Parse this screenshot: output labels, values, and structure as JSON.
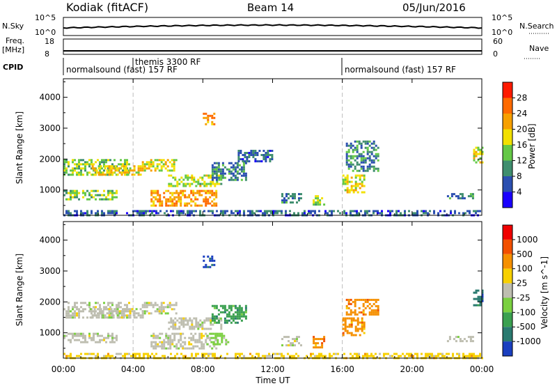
{
  "header": {
    "station": "Kodiak (fitACF)",
    "beam": "Beam 14",
    "date": "05/Jun/2016"
  },
  "top_panels": {
    "nsky_label": "N.Sky",
    "nsky_ticks": [
      "10^5",
      "10^0"
    ],
    "nsearch_label": "N.Search",
    "nsearch_ticks": [
      "10^5",
      "10^0"
    ],
    "freq_label": [
      "Freq.",
      "[MHz]"
    ],
    "freq_ticks": [
      "18",
      "8"
    ],
    "nave_label": "Nave",
    "nave_ticks": [
      "60",
      "0"
    ],
    "cpid_label": "CPID",
    "cpid_segments": [
      {
        "name": "normalsound (fast) 157 RF",
        "start_h": 0,
        "end_h": 16
      },
      {
        "name": "themis 3300 RF",
        "start_h": 4,
        "end_h": 4
      },
      {
        "name": "normalsound (fast) 157 RF",
        "start_h": 16,
        "end_h": 24
      }
    ]
  },
  "chart_data": [
    {
      "type": "heatmap",
      "quantity": "Power",
      "ylabel": "Slant Range [km]",
      "yticks": [
        1000,
        2000,
        3000,
        4000
      ],
      "ylim": [
        180,
        4600
      ],
      "xlim": [
        0,
        24
      ],
      "colorbar": {
        "label": "Power [dB]",
        "ticks": [
          4,
          8,
          12,
          16,
          20,
          24,
          28
        ],
        "range": [
          0,
          32
        ],
        "colors": [
          "#1a00ff",
          "#2b4fb0",
          "#3f8e6e",
          "#64c846",
          "#f2e000",
          "#f7a000",
          "#ff6a00",
          "#ff1a00"
        ]
      },
      "echo_regions": [
        {
          "t0": 0.0,
          "t1": 24.0,
          "r0": 180,
          "r1": 350,
          "level": 6
        },
        {
          "t0": 0.0,
          "t1": 3.8,
          "r0": 1500,
          "r1": 2000,
          "level": 14
        },
        {
          "t0": 1.5,
          "t1": 4.6,
          "r0": 1500,
          "r1": 1800,
          "level": 20
        },
        {
          "t0": 4.5,
          "t1": 6.5,
          "r0": 1650,
          "r1": 2000,
          "level": 18
        },
        {
          "t0": 0.0,
          "t1": 3.0,
          "r0": 700,
          "r1": 1000,
          "level": 14
        },
        {
          "t0": 5.0,
          "t1": 8.8,
          "r0": 500,
          "r1": 1000,
          "level": 24
        },
        {
          "t0": 6.0,
          "t1": 9.0,
          "r0": 1100,
          "r1": 1500,
          "level": 16
        },
        {
          "t0": 8.5,
          "t1": 10.5,
          "r0": 1300,
          "r1": 1900,
          "level": 8
        },
        {
          "t0": 10.0,
          "t1": 12.0,
          "r0": 1900,
          "r1": 2300,
          "level": 6
        },
        {
          "t0": 12.5,
          "t1": 13.6,
          "r0": 600,
          "r1": 900,
          "level": 8
        },
        {
          "t0": 14.3,
          "t1": 14.9,
          "r0": 500,
          "r1": 900,
          "level": 14
        },
        {
          "t0": 16.0,
          "t1": 17.2,
          "r0": 900,
          "r1": 1500,
          "level": 18
        },
        {
          "t0": 16.2,
          "t1": 18.0,
          "r0": 1600,
          "r1": 2600,
          "level": 8
        },
        {
          "t0": 22.0,
          "t1": 23.5,
          "r0": 750,
          "r1": 900,
          "level": 8
        },
        {
          "t0": 23.5,
          "t1": 24.0,
          "r0": 1900,
          "r1": 2400,
          "level": 18
        },
        {
          "t0": 8.0,
          "t1": 8.6,
          "r0": 3100,
          "r1": 3500,
          "level": 24
        }
      ]
    },
    {
      "type": "heatmap",
      "quantity": "Velocity",
      "ylabel": "Slant Range [km]",
      "yticks": [
        1000,
        2000,
        3000,
        4000
      ],
      "ylim": [
        180,
        4600
      ],
      "xlim": [
        0,
        24
      ],
      "xticks": [
        "00:00",
        "04:00",
        "08:00",
        "12:00",
        "16:00",
        "20:00",
        "00:00"
      ],
      "xlabel": "Time UT",
      "colorbar": {
        "label": "Velocity [m s^-1]",
        "ticks": [
          "1000",
          "500",
          "100",
          "25",
          "-25",
          "-100",
          "-500",
          "-1000"
        ],
        "colors": [
          "#1a3fc0",
          "#2a7a70",
          "#3aa050",
          "#7ad040",
          "#bebeb0",
          "#f7d000",
          "#f59000",
          "#f25000",
          "#f00000"
        ]
      },
      "echo_regions": [
        {
          "t0": 0.0,
          "t1": 24.0,
          "r0": 180,
          "r1": 350,
          "level": 5
        },
        {
          "t0": 0.0,
          "t1": 3.8,
          "r0": 1500,
          "r1": 2000,
          "level": 4
        },
        {
          "t0": 1.5,
          "t1": 4.6,
          "r0": 1500,
          "r1": 1800,
          "level": 4
        },
        {
          "t0": 4.5,
          "t1": 6.5,
          "r0": 1650,
          "r1": 2000,
          "level": 4
        },
        {
          "t0": 0.0,
          "t1": 3.0,
          "r0": 700,
          "r1": 1000,
          "level": 4
        },
        {
          "t0": 5.0,
          "t1": 8.8,
          "r0": 500,
          "r1": 1000,
          "level": 4
        },
        {
          "t0": 8.2,
          "t1": 9.5,
          "r0": 600,
          "r1": 1000,
          "level": 3
        },
        {
          "t0": 6.0,
          "t1": 9.0,
          "r0": 1100,
          "r1": 1500,
          "level": 4
        },
        {
          "t0": 8.5,
          "t1": 10.5,
          "r0": 1300,
          "r1": 1900,
          "level": 2
        },
        {
          "t0": 12.5,
          "t1": 13.6,
          "r0": 600,
          "r1": 900,
          "level": 4
        },
        {
          "t0": 14.3,
          "t1": 14.9,
          "r0": 500,
          "r1": 900,
          "level": 6
        },
        {
          "t0": 16.0,
          "t1": 17.2,
          "r0": 900,
          "r1": 1500,
          "level": 6
        },
        {
          "t0": 16.2,
          "t1": 18.0,
          "r0": 1600,
          "r1": 2100,
          "level": 6
        },
        {
          "t0": 22.0,
          "t1": 23.5,
          "r0": 750,
          "r1": 900,
          "level": 4
        },
        {
          "t0": 23.5,
          "t1": 24.0,
          "r0": 1900,
          "r1": 2400,
          "level": 1
        },
        {
          "t0": 8.0,
          "t1": 8.6,
          "r0": 3100,
          "r1": 3500,
          "level": 0
        }
      ]
    }
  ]
}
